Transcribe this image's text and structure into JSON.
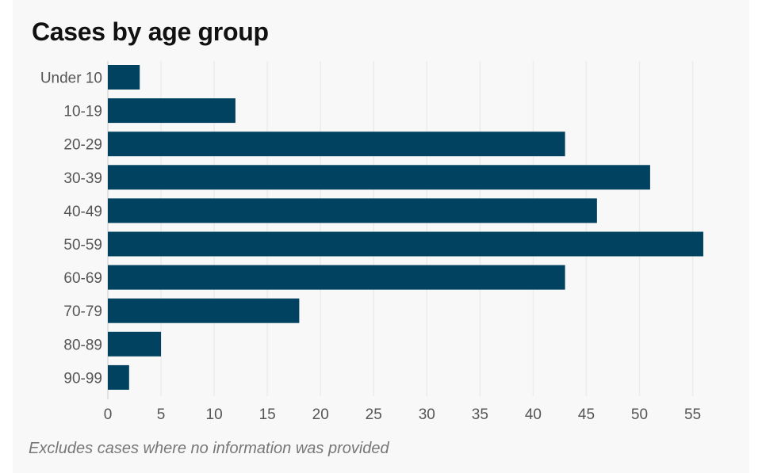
{
  "chart_data": {
    "type": "bar",
    "orientation": "horizontal",
    "title": "Cases by age group",
    "categories": [
      "Under 10",
      "10-19",
      "20-29",
      "30-39",
      "40-49",
      "50-59",
      "60-69",
      "70-79",
      "80-89",
      "90-99"
    ],
    "values": [
      3,
      12,
      43,
      51,
      46,
      56,
      43,
      18,
      5,
      2
    ],
    "xlim": [
      0,
      58
    ],
    "x_ticks": [
      0,
      5,
      10,
      15,
      20,
      25,
      30,
      35,
      40,
      45,
      50,
      55
    ],
    "grid": true,
    "legend": "none",
    "bar_color": "#00425f",
    "note": "Excludes cases where no information was provided"
  }
}
